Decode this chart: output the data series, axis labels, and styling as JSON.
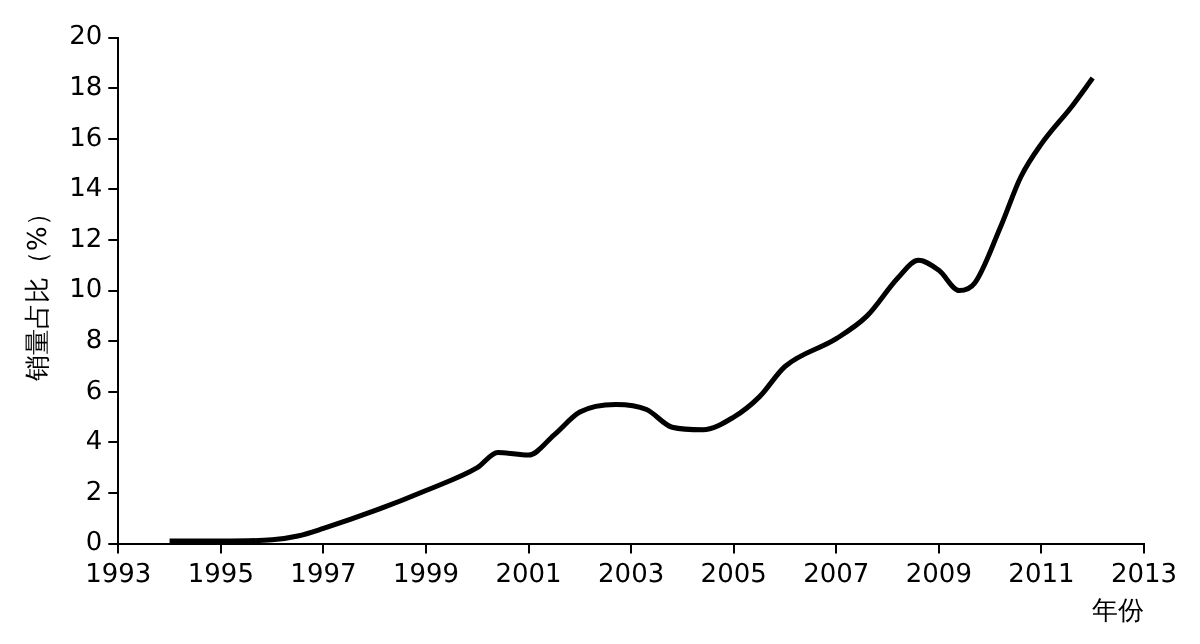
{
  "chart_data": {
    "type": "line",
    "xlabel": "年份",
    "ylabel": "销量占比（%）",
    "x": [
      1994,
      1995,
      1996,
      1996.5,
      1997,
      1998,
      1999,
      2000,
      2000.4,
      2001,
      2001.5,
      2002,
      2002.7,
      2003.3,
      2003.8,
      2004.4,
      2005,
      2005.5,
      2006,
      2007,
      2007.6,
      2008.2,
      2008.6,
      2009,
      2009.4,
      2009.7,
      2010.2,
      2010.6,
      2011,
      2011.6,
      2012
    ],
    "series": [
      {
        "color": "#000000",
        "values": [
          0.1,
          0.1,
          0.15,
          0.3,
          0.6,
          1.3,
          2.1,
          3.0,
          3.6,
          3.5,
          4.3,
          5.2,
          5.5,
          5.3,
          4.6,
          4.5,
          5.0,
          5.8,
          7.0,
          8.1,
          9.0,
          10.5,
          11.2,
          10.8,
          10.0,
          10.3,
          12.5,
          14.5,
          15.8,
          17.3,
          18.4
        ]
      }
    ],
    "xlim": [
      1993,
      2013
    ],
    "xticks": [
      1993,
      1995,
      1997,
      1999,
      2001,
      2003,
      2005,
      2007,
      2009,
      2011,
      2013
    ],
    "ylim": [
      0,
      20
    ],
    "yticks": [
      0,
      2,
      4,
      6,
      8,
      10,
      12,
      14,
      16,
      18,
      20
    ],
    "grid": false,
    "legend": false,
    "marker": "none",
    "line_style": "solid"
  }
}
